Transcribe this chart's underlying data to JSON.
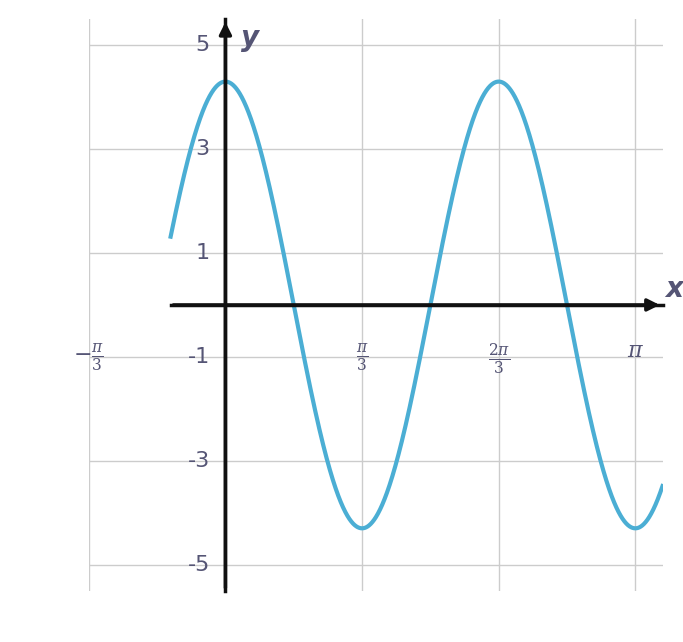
{
  "title": "",
  "xlabel": "x",
  "ylabel": "y",
  "curve_color": "#4BAED4",
  "curve_linewidth": 3.0,
  "amplitude": 4.3,
  "frequency": 3,
  "x_start": -0.42,
  "x_end": 3.35,
  "xlim": [
    -0.42,
    3.35
  ],
  "ylim": [
    -5.5,
    5.5
  ],
  "y_ticks": [
    -5,
    -3,
    -1,
    1,
    3,
    5
  ],
  "x_tick_positions": [
    -1.0471975511965976,
    1.0471975511965976,
    2.0943951023931953,
    3.141592653589793
  ],
  "x_tick_labels": [
    "-\\frac{\\pi}{3}",
    "\\frac{\\pi}{3}",
    "\\frac{2\\pi}{3}",
    "\\pi"
  ],
  "grid_color": "#cccccc",
  "background_color": "#ffffff",
  "axis_color": "#111111",
  "label_color": "#555575"
}
